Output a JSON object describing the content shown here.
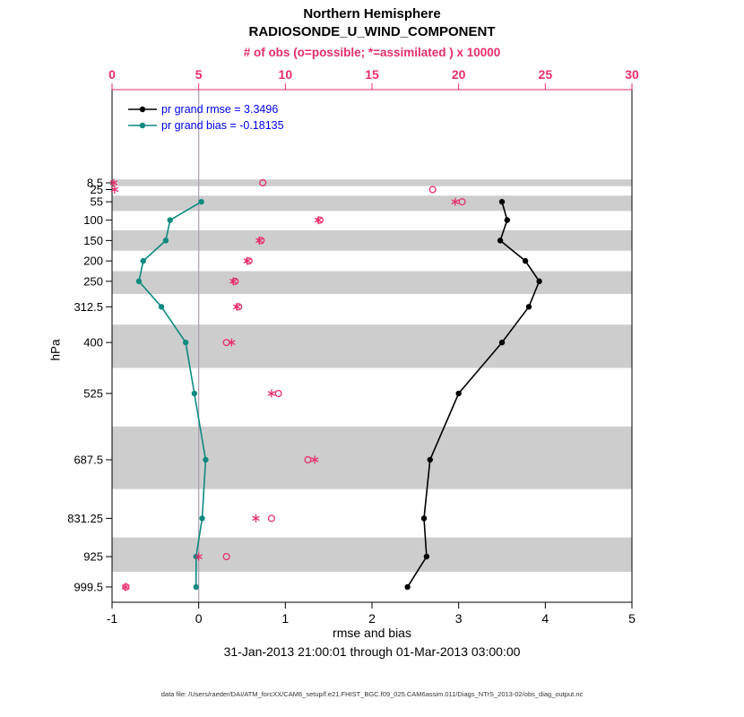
{
  "chart_data": {
    "type": "line",
    "title": "Northern Hemisphere",
    "subtitle": "RADIOSONDE_U_WIND_COMPONENT",
    "top_axis_label": "# of obs (o=possible; *=assimilated ) x 10000",
    "xlabel": "rmse and bias",
    "ylabel": "hPa",
    "timespan": "31-Jan-2013 21:00:01 through 01-Mar-2013 03:00:00",
    "x_bottom": {
      "min": -1,
      "max": 5,
      "ticks": [
        -1,
        0,
        1,
        2,
        3,
        4,
        5
      ]
    },
    "x_top": {
      "min": 0,
      "max": 30,
      "ticks": [
        0,
        5,
        10,
        15,
        20,
        25,
        30
      ]
    },
    "y_axis": {
      "unit": "hPa",
      "inverted": true,
      "levels": [
        8.5,
        25,
        55,
        100,
        150,
        200,
        250,
        312.5,
        400,
        525,
        687.5,
        831.25,
        925,
        999.5
      ]
    },
    "series": [
      {
        "name": "rmse",
        "color": "#000000",
        "axis": "bottom",
        "points": [
          {
            "p": 55,
            "v": 3.5
          },
          {
            "p": 100,
            "v": 3.56
          },
          {
            "p": 150,
            "v": 3.48
          },
          {
            "p": 200,
            "v": 3.77
          },
          {
            "p": 250,
            "v": 3.93
          },
          {
            "p": 312.5,
            "v": 3.81
          },
          {
            "p": 400,
            "v": 3.5
          },
          {
            "p": 525,
            "v": 3.0
          },
          {
            "p": 687.5,
            "v": 2.67
          },
          {
            "p": 831.25,
            "v": 2.6
          },
          {
            "p": 925,
            "v": 2.63
          },
          {
            "p": 999.5,
            "v": 2.41
          }
        ]
      },
      {
        "name": "bias",
        "color": "#0e8a80",
        "axis": "bottom",
        "points": [
          {
            "p": 55,
            "v": 0.03
          },
          {
            "p": 100,
            "v": -0.33
          },
          {
            "p": 150,
            "v": -0.38
          },
          {
            "p": 200,
            "v": -0.64
          },
          {
            "p": 250,
            "v": -0.69
          },
          {
            "p": 312.5,
            "v": -0.43
          },
          {
            "p": 400,
            "v": -0.15
          },
          {
            "p": 525,
            "v": -0.05
          },
          {
            "p": 687.5,
            "v": 0.08
          },
          {
            "p": 831.25,
            "v": 0.04
          },
          {
            "p": 925,
            "v": -0.03
          },
          {
            "p": 999.5,
            "v": -0.03
          }
        ]
      }
    ],
    "obs_counts": [
      {
        "p": 8.5,
        "possible": 8.7,
        "assimilated": 0.1
      },
      {
        "p": 25,
        "possible": 18.5,
        "assimilated": 0.15
      },
      {
        "p": 55,
        "possible": 20.2,
        "assimilated": 19.8
      },
      {
        "p": 100,
        "possible": 12.0,
        "assimilated": 11.9
      },
      {
        "p": 150,
        "possible": 8.6,
        "assimilated": 8.5
      },
      {
        "p": 200,
        "possible": 7.9,
        "assimilated": 7.8
      },
      {
        "p": 250,
        "possible": 7.1,
        "assimilated": 7.0
      },
      {
        "p": 312.5,
        "possible": 7.3,
        "assimilated": 7.2
      },
      {
        "p": 400,
        "possible": 6.6,
        "assimilated": 6.9
      },
      {
        "p": 525,
        "possible": 9.6,
        "assimilated": 9.2
      },
      {
        "p": 687.5,
        "possible": 11.3,
        "assimilated": 11.7
      },
      {
        "p": 831.25,
        "possible": 9.2,
        "assimilated": 8.3
      },
      {
        "p": 925,
        "possible": 6.6,
        "assimilated": 5.0
      },
      {
        "p": 999.5,
        "possible": 0.8,
        "assimilated": 0.78
      }
    ],
    "zero_line": 0,
    "band_color": "#cdcdcd",
    "obs_color": "#e62e6a",
    "zero_line_color": "#a9a0ae"
  },
  "legend": {
    "text_color": "#0000ee",
    "items": [
      {
        "label": "pr grand rmse = 3.3496",
        "color": "#000000"
      },
      {
        "label": "pr grand bias = -0.18135",
        "color": "#0e8a80"
      }
    ]
  },
  "footer": {
    "text": "data file: /Users/raeder/DAI/ATM_forcXX/CAM6_setup/f.e21.FHIST_BGC.f09_025.CAM6assim.011/Diags_NTrS_2013-02/obs_diag_output.nc"
  }
}
